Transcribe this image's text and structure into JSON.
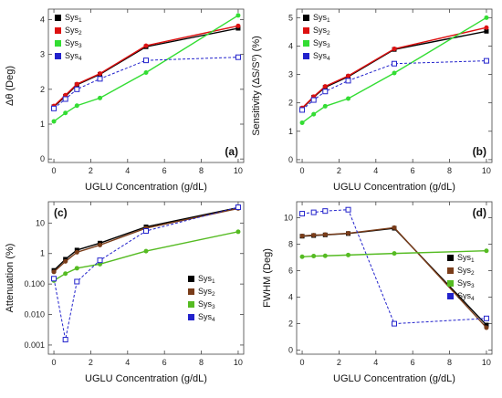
{
  "colors": {
    "sys1": "#000000",
    "sys2_top": "#dd1111",
    "sys2_bottom": "#7a3d1a",
    "sys3": "#33dd33",
    "sys3_bottom": "#55bb22",
    "sys4": "#2222cc"
  },
  "chart_data": [
    {
      "id": "a",
      "type": "line",
      "panel_label": "(a)",
      "xlabel": "UGLU Concentration (g/dL)",
      "ylabel": "Δθ (Deg)",
      "xlim": [
        -0.3,
        10.3
      ],
      "ylim": [
        -0.1,
        4.3
      ],
      "xticks": [
        0,
        2,
        4,
        6,
        8,
        10
      ],
      "yticks": [
        0,
        1,
        2,
        3,
        4
      ],
      "ytick_labels": [
        "0",
        "1",
        "2",
        "3",
        "4"
      ],
      "yscale": "linear",
      "legend_position": "top-left",
      "legend": [
        {
          "base": "Sys",
          "sub": "1",
          "color_key": "sys1"
        },
        {
          "base": "Sys",
          "sub": "2",
          "color_key": "sys2_top"
        },
        {
          "base": "Sys",
          "sub": "3",
          "color_key": "sys3"
        },
        {
          "base": "Sys",
          "sub": "4",
          "color_key": "sys4"
        }
      ],
      "x": [
        0,
        0.625,
        1.25,
        2.5,
        5,
        10
      ],
      "series": [
        {
          "color_key": "sys1",
          "marker": "square",
          "dashed": false,
          "values": [
            1.5,
            1.8,
            2.13,
            2.43,
            3.22,
            3.75
          ]
        },
        {
          "color_key": "sys2_top",
          "marker": "circle",
          "dashed": false,
          "values": [
            1.52,
            1.83,
            2.15,
            2.45,
            3.25,
            3.82
          ]
        },
        {
          "color_key": "sys3",
          "marker": "circle",
          "dashed": false,
          "values": [
            1.08,
            1.32,
            1.53,
            1.75,
            2.48,
            4.12
          ]
        },
        {
          "color_key": "sys4",
          "marker": "square-open",
          "dashed": true,
          "values": [
            1.45,
            1.72,
            2.0,
            2.3,
            2.83,
            2.92
          ]
        }
      ]
    },
    {
      "id": "b",
      "type": "line",
      "panel_label": "(b)",
      "xlabel": "UGLU Concentration (g/dL)",
      "ylabel": "Sensitivity (ΔS/S⁰) (%)",
      "xlim": [
        -0.3,
        10.3
      ],
      "ylim": [
        -0.1,
        5.3
      ],
      "xticks": [
        0,
        2,
        4,
        6,
        8,
        10
      ],
      "yticks": [
        0,
        1,
        2,
        3,
        4,
        5
      ],
      "ytick_labels": [
        "0",
        "1",
        "2",
        "3",
        "4",
        "5"
      ],
      "yscale": "linear",
      "legend_position": "top-left",
      "legend": [
        {
          "base": "Sys",
          "sub": "1",
          "color_key": "sys1"
        },
        {
          "base": "Sys",
          "sub": "2",
          "color_key": "sys2_top"
        },
        {
          "base": "Sys",
          "sub": "3",
          "color_key": "sys3"
        },
        {
          "base": "Sys",
          "sub": "4",
          "color_key": "sys4"
        }
      ],
      "x": [
        0,
        0.625,
        1.25,
        2.5,
        5,
        10
      ],
      "series": [
        {
          "color_key": "sys1",
          "marker": "square",
          "dashed": false,
          "values": [
            1.8,
            2.2,
            2.55,
            2.92,
            3.88,
            4.52
          ]
        },
        {
          "color_key": "sys2_top",
          "marker": "circle",
          "dashed": false,
          "values": [
            1.82,
            2.22,
            2.58,
            2.95,
            3.9,
            4.65
          ]
        },
        {
          "color_key": "sys3",
          "marker": "circle",
          "dashed": false,
          "values": [
            1.3,
            1.6,
            1.88,
            2.15,
            3.05,
            5.0
          ]
        },
        {
          "color_key": "sys4",
          "marker": "square-open",
          "dashed": true,
          "values": [
            1.75,
            2.1,
            2.4,
            2.78,
            3.38,
            3.48
          ]
        }
      ]
    },
    {
      "id": "c",
      "type": "line",
      "panel_label": "(c)",
      "xlabel": "UGLU Concentration (g/dL)",
      "ylabel": "Attenuation (%)",
      "xlim": [
        -0.3,
        10.3
      ],
      "ylim": [
        0.0005,
        50
      ],
      "xticks": [
        0,
        2,
        4,
        6,
        8,
        10
      ],
      "yticks": [
        0.001,
        0.01,
        0.1,
        1,
        10
      ],
      "ytick_labels": [
        "0.001",
        "0.010",
        "0.100",
        "1",
        "10"
      ],
      "yscale": "log",
      "legend_position": "bottom-right",
      "legend": [
        {
          "base": "Sys",
          "sub": "1",
          "color_key": "sys1"
        },
        {
          "base": "Sys",
          "sub": "2",
          "color_key": "sys2_bottom"
        },
        {
          "base": "Sys",
          "sub": "3",
          "color_key": "sys3_bottom"
        },
        {
          "base": "Sys",
          "sub": "4",
          "color_key": "sys4"
        }
      ],
      "x": [
        0,
        0.625,
        1.25,
        2.5,
        5,
        10
      ],
      "series": [
        {
          "color_key": "sys1",
          "marker": "square",
          "dashed": false,
          "values": [
            0.28,
            0.65,
            1.3,
            2.2,
            7.5,
            32
          ]
        },
        {
          "color_key": "sys2_bottom",
          "marker": "circle",
          "dashed": false,
          "values": [
            0.25,
            0.55,
            1.1,
            1.9,
            6.8,
            30
          ]
        },
        {
          "color_key": "sys3_bottom",
          "marker": "circle",
          "dashed": false,
          "values": [
            0.13,
            0.22,
            0.33,
            0.45,
            1.2,
            5.2
          ]
        },
        {
          "color_key": "sys4",
          "marker": "square-open",
          "dashed": true,
          "values": [
            0.15,
            0.0015,
            0.12,
            0.6,
            5.5,
            33
          ]
        }
      ]
    },
    {
      "id": "d",
      "type": "line",
      "panel_label": "(d)",
      "xlabel": "UGLU Concentration (g/dL)",
      "ylabel": "FWHM (Deg)",
      "xlim": [
        -0.3,
        10.3
      ],
      "ylim": [
        -0.3,
        11.2
      ],
      "xticks": [
        0,
        2,
        4,
        6,
        8,
        10
      ],
      "yticks": [
        0,
        2,
        4,
        6,
        8,
        10
      ],
      "ytick_labels": [
        "0",
        "2",
        "4",
        "6",
        "8",
        "10"
      ],
      "yscale": "linear",
      "legend_position": "right",
      "legend": [
        {
          "base": "Sys",
          "sub": "1",
          "color_key": "sys1"
        },
        {
          "base": "Sys",
          "sub": "2",
          "color_key": "sys2_bottom"
        },
        {
          "base": "Sys",
          "sub": "3",
          "color_key": "sys3_bottom"
        },
        {
          "base": "Sys",
          "sub": "4",
          "color_key": "sys4"
        }
      ],
      "x": [
        0,
        0.625,
        1.25,
        2.5,
        5,
        10
      ],
      "series": [
        {
          "color_key": "sys1",
          "marker": "square",
          "dashed": false,
          "values": [
            8.6,
            8.65,
            8.7,
            8.8,
            9.2,
            1.9
          ]
        },
        {
          "color_key": "sys2_bottom",
          "marker": "circle",
          "dashed": false,
          "values": [
            8.62,
            8.68,
            8.72,
            8.82,
            9.25,
            1.7
          ]
        },
        {
          "color_key": "sys3_bottom",
          "marker": "circle",
          "dashed": false,
          "values": [
            7.05,
            7.1,
            7.12,
            7.18,
            7.3,
            7.5
          ]
        },
        {
          "color_key": "sys4",
          "marker": "square-open",
          "dashed": true,
          "values": [
            10.3,
            10.4,
            10.5,
            10.6,
            2.0,
            2.4
          ]
        }
      ]
    }
  ]
}
